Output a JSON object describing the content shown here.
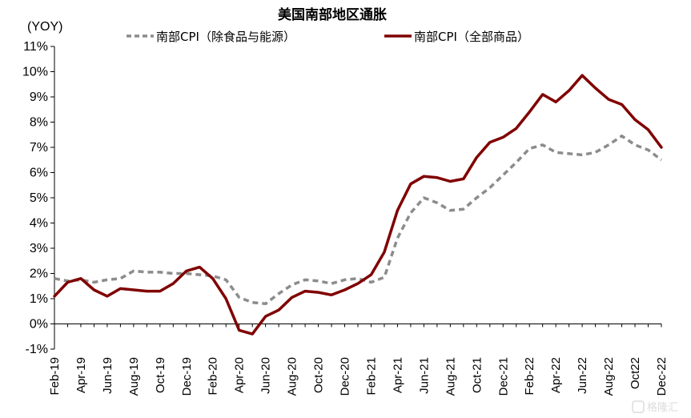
{
  "chart_data": {
    "type": "line",
    "title": "美国南部地区通胀",
    "ylabel": "(YOY)",
    "ylim": [
      -1,
      11
    ],
    "y_ticks": [
      "-1%",
      "0%",
      "1%",
      "2%",
      "3%",
      "4%",
      "5%",
      "6%",
      "7%",
      "8%",
      "9%",
      "10%",
      "11%"
    ],
    "x": [
      "Feb-19",
      "Mar-19",
      "Apr-19",
      "May-19",
      "Jun-19",
      "Jul-19",
      "Aug-19",
      "Sep-19",
      "Oct-19",
      "Nov-19",
      "Dec-19",
      "Jan-20",
      "Feb-20",
      "Mar-20",
      "Apr-20",
      "May-20",
      "Jun-20",
      "Jul-20",
      "Aug-20",
      "Sep-20",
      "Oct-20",
      "Nov-20",
      "Dec-20",
      "Jan-21",
      "Feb-21",
      "Mar-21",
      "Apr-21",
      "May-21",
      "Jun-21",
      "Jul-21",
      "Aug-21",
      "Sep-21",
      "Oct-21",
      "Nov-21",
      "Dec-21",
      "Jan-22",
      "Feb-22",
      "Mar-22",
      "Apr-22",
      "May-22",
      "Jun-22",
      "Jul-22",
      "Aug-22",
      "Sep-22",
      "Oct-22",
      "Nov-22",
      "Dec-22"
    ],
    "x_tick_labels": [
      "Feb-19",
      "Apr-19",
      "Jun-19",
      "Aug-19",
      "Oct-19",
      "Dec-19",
      "Feb-20",
      "Apr-20",
      "Jun-20",
      "Aug-20",
      "Oct-20",
      "Dec-20",
      "Feb-21",
      "Apr-21",
      "Jun-21",
      "Aug-21",
      "Oct-21",
      "Dec-21",
      "Feb-22",
      "Apr-22",
      "Jun-22",
      "Aug-22",
      "Oct22",
      "Dec-22"
    ],
    "series": [
      {
        "name": "南部CPI（除食品与能源）",
        "style": "dashed",
        "color": "#8c8c8c",
        "values": [
          1.8,
          1.7,
          1.75,
          1.65,
          1.75,
          1.8,
          2.1,
          2.05,
          2.05,
          2.0,
          2.0,
          1.95,
          1.9,
          1.75,
          1.05,
          0.85,
          0.8,
          1.2,
          1.55,
          1.75,
          1.7,
          1.6,
          1.75,
          1.8,
          1.65,
          1.85,
          3.4,
          4.4,
          5.0,
          4.8,
          4.5,
          4.55,
          5.0,
          5.4,
          5.9,
          6.4,
          6.95,
          7.1,
          6.8,
          6.75,
          6.7,
          6.8,
          7.1,
          7.45,
          7.1,
          6.9,
          6.5
        ]
      },
      {
        "name": "南部CPI（全部商品）",
        "style": "solid",
        "color": "#800000",
        "values": [
          1.1,
          1.65,
          1.8,
          1.35,
          1.1,
          1.4,
          1.35,
          1.3,
          1.3,
          1.6,
          2.1,
          2.25,
          1.8,
          1.0,
          -0.25,
          -0.4,
          0.3,
          0.55,
          1.05,
          1.3,
          1.25,
          1.15,
          1.35,
          1.6,
          1.95,
          2.85,
          4.5,
          5.55,
          5.85,
          5.8,
          5.65,
          5.75,
          6.6,
          7.2,
          7.4,
          7.75,
          8.4,
          9.1,
          8.8,
          9.25,
          9.85,
          9.35,
          8.9,
          8.7,
          8.1,
          7.7,
          7.0
        ]
      }
    ],
    "grid": false,
    "legend_position": "top"
  },
  "watermark": "格隆汇"
}
